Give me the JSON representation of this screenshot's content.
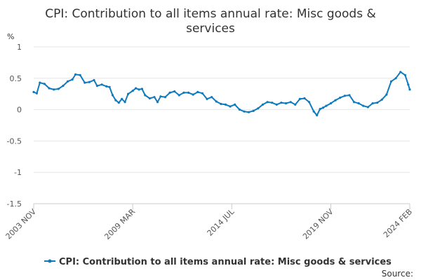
{
  "chart_data": {
    "type": "line",
    "title": "CPI: Contribution to all items annual rate: Misc goods & services",
    "title_lines": [
      "CPI: Contribution to all items annual rate: Misc goods &",
      "services"
    ],
    "y_unit": "%",
    "ylim": [
      -1.5,
      1
    ],
    "y_ticks": [
      1,
      0.5,
      0,
      -0.5,
      -1,
      -1.5
    ],
    "y_tick_labels": [
      "1",
      "0.5",
      "0",
      "-0.5",
      "-1",
      "-1.5"
    ],
    "x_range": [
      "2003-11",
      "2024-02"
    ],
    "x_tick_labels": [
      {
        "label": "2003 NOV",
        "date": "2003-11"
      },
      {
        "label": "2009 MAR",
        "date": "2009-03"
      },
      {
        "label": "2014 JUL",
        "date": "2014-07"
      },
      {
        "label": "2019 NOV",
        "date": "2019-11"
      },
      {
        "label": "2024 FEB",
        "date": "2024-02"
      }
    ],
    "grid": true,
    "legend_position": "bottom",
    "series": [
      {
        "name": "CPI: Contribution to all items annual rate: Misc goods & services",
        "color": "#0f7bbd",
        "points": [
          [
            "2003-11",
            0.28
          ],
          [
            "2004-01",
            0.26
          ],
          [
            "2004-03",
            0.43
          ],
          [
            "2004-06",
            0.41
          ],
          [
            "2004-09",
            0.34
          ],
          [
            "2004-12",
            0.32
          ],
          [
            "2005-03",
            0.33
          ],
          [
            "2005-06",
            0.38
          ],
          [
            "2005-09",
            0.45
          ],
          [
            "2005-12",
            0.48
          ],
          [
            "2006-02",
            0.56
          ],
          [
            "2006-05",
            0.55
          ],
          [
            "2006-08",
            0.43
          ],
          [
            "2006-11",
            0.44
          ],
          [
            "2007-02",
            0.47
          ],
          [
            "2007-04",
            0.38
          ],
          [
            "2007-07",
            0.4
          ],
          [
            "2007-10",
            0.37
          ],
          [
            "2007-12",
            0.36
          ],
          [
            "2008-02",
            0.23
          ],
          [
            "2008-04",
            0.15
          ],
          [
            "2008-06",
            0.11
          ],
          [
            "2008-08",
            0.17
          ],
          [
            "2008-10",
            0.12
          ],
          [
            "2008-12",
            0.25
          ],
          [
            "2009-03",
            0.3
          ],
          [
            "2009-05",
            0.34
          ],
          [
            "2009-07",
            0.32
          ],
          [
            "2009-09",
            0.33
          ],
          [
            "2009-11",
            0.23
          ],
          [
            "2010-02",
            0.18
          ],
          [
            "2010-05",
            0.2
          ],
          [
            "2010-07",
            0.12
          ],
          [
            "2010-09",
            0.21
          ],
          [
            "2010-12",
            0.2
          ],
          [
            "2011-03",
            0.27
          ],
          [
            "2011-06",
            0.29
          ],
          [
            "2011-09",
            0.23
          ],
          [
            "2011-12",
            0.27
          ],
          [
            "2012-03",
            0.27
          ],
          [
            "2012-06",
            0.24
          ],
          [
            "2012-09",
            0.28
          ],
          [
            "2012-12",
            0.26
          ],
          [
            "2013-03",
            0.17
          ],
          [
            "2013-06",
            0.2
          ],
          [
            "2013-09",
            0.13
          ],
          [
            "2013-12",
            0.09
          ],
          [
            "2014-03",
            0.08
          ],
          [
            "2014-06",
            0.05
          ],
          [
            "2014-09",
            0.08
          ],
          [
            "2014-12",
            0.0
          ],
          [
            "2015-03",
            -0.03
          ],
          [
            "2015-06",
            -0.04
          ],
          [
            "2015-09",
            -0.02
          ],
          [
            "2015-12",
            0.02
          ],
          [
            "2016-03",
            0.08
          ],
          [
            "2016-06",
            0.12
          ],
          [
            "2016-09",
            0.11
          ],
          [
            "2016-12",
            0.08
          ],
          [
            "2017-03",
            0.11
          ],
          [
            "2017-06",
            0.1
          ],
          [
            "2017-09",
            0.12
          ],
          [
            "2017-12",
            0.08
          ],
          [
            "2018-03",
            0.17
          ],
          [
            "2018-06",
            0.18
          ],
          [
            "2018-09",
            0.12
          ],
          [
            "2018-12",
            -0.03
          ],
          [
            "2019-02",
            -0.09
          ],
          [
            "2019-04",
            0.01
          ],
          [
            "2019-06",
            0.03
          ],
          [
            "2019-08",
            0.06
          ],
          [
            "2019-11",
            0.1
          ],
          [
            "2020-02",
            0.15
          ],
          [
            "2020-05",
            0.19
          ],
          [
            "2020-08",
            0.22
          ],
          [
            "2020-11",
            0.23
          ],
          [
            "2021-02",
            0.12
          ],
          [
            "2021-05",
            0.1
          ],
          [
            "2021-08",
            0.06
          ],
          [
            "2021-11",
            0.04
          ],
          [
            "2022-02",
            0.1
          ],
          [
            "2022-05",
            0.11
          ],
          [
            "2022-08",
            0.16
          ],
          [
            "2022-11",
            0.24
          ],
          [
            "2023-02",
            0.45
          ],
          [
            "2023-05",
            0.5
          ],
          [
            "2023-08",
            0.6
          ],
          [
            "2023-11",
            0.55
          ],
          [
            "2024-01",
            0.4
          ],
          [
            "2024-02",
            0.32
          ]
        ]
      }
    ],
    "source_label": "Source:"
  }
}
